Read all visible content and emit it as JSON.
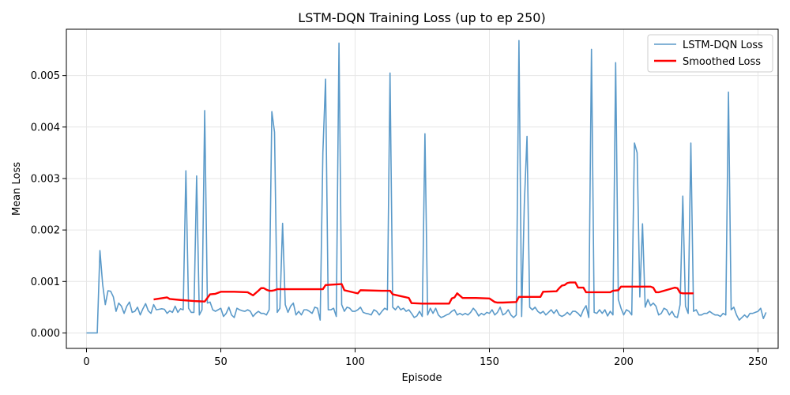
{
  "chart_data": {
    "type": "line",
    "title": "LSTM-DQN Training Loss (up to ep 250)",
    "xlabel": "Episode",
    "ylabel": "Mean Loss",
    "xlim": [
      -7.5,
      257.5
    ],
    "ylim": [
      -0.0003,
      0.0059
    ],
    "xticks": [
      0,
      50,
      100,
      150,
      200,
      250
    ],
    "yticks": [
      0.0,
      0.001,
      0.002,
      0.003,
      0.004,
      0.005
    ],
    "ytick_labels": [
      "0.000",
      "0.001",
      "0.002",
      "0.003",
      "0.004",
      "0.005"
    ],
    "grid": true,
    "legend_position": "top-right",
    "colors": {
      "raw": "#5b9ac9",
      "smoothed": "#ff0000",
      "grid": "#e6e6e6",
      "axes": "#000000"
    },
    "series": [
      {
        "name": "LSTM-DQN Loss",
        "x_start": 0,
        "values": [
          0,
          0,
          0,
          0,
          0,
          0.0016,
          0.00095,
          0.00055,
          0.00082,
          0.00081,
          0.0007,
          0.00042,
          0.00058,
          0.00052,
          0.00038,
          0.00052,
          0.0006,
          0.0004,
          0.00042,
          0.0005,
          0.00035,
          0.00047,
          0.00057,
          0.00043,
          0.00038,
          0.00055,
          0.00045,
          0.00046,
          0.00047,
          0.00046,
          0.00038,
          0.00043,
          0.0004,
          0.00052,
          0.0004,
          0.00047,
          0.00045,
          0.00315,
          0.00048,
          0.0004,
          0.0004,
          0.00305,
          0.00035,
          0.00045,
          0.00432,
          0.00058,
          0.0006,
          0.00045,
          0.00042,
          0.00045,
          0.00048,
          0.00032,
          0.00038,
          0.0005,
          0.00035,
          0.0003,
          0.00048,
          0.00045,
          0.00043,
          0.00042,
          0.00045,
          0.00042,
          0.00032,
          0.00038,
          0.00042,
          0.00038,
          0.00038,
          0.00035,
          0.00045,
          0.0043,
          0.0039,
          0.0004,
          0.00048,
          0.00213,
          0.00055,
          0.0004,
          0.00052,
          0.00058,
          0.00035,
          0.00042,
          0.00035,
          0.00045,
          0.00045,
          0.00042,
          0.00038,
          0.0005,
          0.00048,
          0.00025,
          0.0035,
          0.00493,
          0.00045,
          0.00045,
          0.00048,
          0.00032,
          0.00563,
          0.00055,
          0.00042,
          0.0005,
          0.00048,
          0.00042,
          0.00042,
          0.00045,
          0.0005,
          0.0004,
          0.00038,
          0.00037,
          0.00035,
          0.00045,
          0.00042,
          0.00035,
          0.00042,
          0.00048,
          0.00045,
          0.00505,
          0.0005,
          0.00045,
          0.00052,
          0.00045,
          0.00048,
          0.00042,
          0.00045,
          0.00038,
          0.0003,
          0.00033,
          0.00042,
          0.00032,
          0.00387,
          0.00035,
          0.00048,
          0.00038,
          0.00048,
          0.00035,
          0.0003,
          0.00032,
          0.00035,
          0.00037,
          0.00042,
          0.00045,
          0.00035,
          0.00038,
          0.00035,
          0.00038,
          0.00035,
          0.0004,
          0.00048,
          0.00042,
          0.00033,
          0.00038,
          0.00035,
          0.0004,
          0.00038,
          0.00045,
          0.00035,
          0.0004,
          0.0005,
          0.00035,
          0.00038,
          0.00045,
          0.00035,
          0.0003,
          0.00035,
          0.00568,
          0.00032,
          0.0025,
          0.00382,
          0.0005,
          0.00045,
          0.0005,
          0.00042,
          0.00038,
          0.00042,
          0.00035,
          0.0004,
          0.00045,
          0.00038,
          0.00045,
          0.00035,
          0.00032,
          0.00035,
          0.0004,
          0.00035,
          0.00042,
          0.00042,
          0.00038,
          0.00032,
          0.00045,
          0.00053,
          0.0003,
          0.00551,
          0.0004,
          0.00038,
          0.00045,
          0.00038,
          0.00045,
          0.00033,
          0.00042,
          0.00035,
          0.00525,
          0.00065,
          0.00048,
          0.00035,
          0.00045,
          0.00042,
          0.00035,
          0.00369,
          0.0035,
          0.0007,
          0.00212,
          0.0005,
          0.00065,
          0.00053,
          0.00058,
          0.00052,
          0.00035,
          0.00038,
          0.00048,
          0.00045,
          0.00035,
          0.00042,
          0.00032,
          0.0003,
          0.00055,
          0.00266,
          0.00052,
          0.00038,
          0.00369,
          0.00042,
          0.00045,
          0.00035,
          0.00035,
          0.00038,
          0.00038,
          0.00042,
          0.00038,
          0.00035,
          0.00035,
          0.00032,
          0.00038,
          0.00035,
          0.00468,
          0.00045,
          0.0005,
          0.00035,
          0.00025,
          0.0003,
          0.00035,
          0.0003,
          0.00038,
          0.00038,
          0.0004,
          0.00042,
          0.00048,
          0.00028,
          0.0004
        ]
      },
      {
        "name": "Smoothed Loss",
        "x": [
          25,
          30,
          31,
          35,
          40,
          44,
          46,
          48,
          50,
          55,
          60,
          62,
          64,
          65,
          66,
          67,
          68,
          69,
          70,
          71,
          75,
          80,
          85,
          88,
          89,
          95,
          96,
          100,
          101,
          102,
          110,
          113,
          114,
          120,
          121,
          125,
          130,
          135,
          136,
          137,
          138,
          140,
          145,
          150,
          152,
          153,
          155,
          160,
          161,
          165,
          169,
          170,
          175,
          176,
          177,
          178,
          179,
          180,
          182,
          183,
          185,
          186,
          190,
          195,
          196,
          198,
          199,
          200,
          210,
          211,
          212,
          213,
          219,
          220,
          221,
          222,
          226
        ],
        "values": [
          0.00065,
          0.00069,
          0.00066,
          0.00064,
          0.00062,
          0.00061,
          0.00075,
          0.00076,
          0.0008,
          0.0008,
          0.00079,
          0.00073,
          0.00082,
          0.00087,
          0.00087,
          0.00084,
          0.00082,
          0.00082,
          0.00083,
          0.00085,
          0.00085,
          0.00085,
          0.00085,
          0.00085,
          0.00093,
          0.00095,
          0.00083,
          0.00078,
          0.00077,
          0.00083,
          0.00082,
          0.00082,
          0.00075,
          0.00068,
          0.00058,
          0.00057,
          0.00057,
          0.00057,
          0.00067,
          0.00069,
          0.00077,
          0.00068,
          0.00068,
          0.00067,
          0.0006,
          0.00059,
          0.00059,
          0.0006,
          0.0007,
          0.0007,
          0.0007,
          0.0008,
          0.00081,
          0.00087,
          0.00092,
          0.00093,
          0.00097,
          0.00098,
          0.00098,
          0.00088,
          0.00088,
          0.00079,
          0.00079,
          0.00079,
          0.00082,
          0.00083,
          0.0009,
          0.0009,
          0.0009,
          0.00088,
          0.00079,
          0.00079,
          0.00088,
          0.00087,
          0.00078,
          0.00077,
          0.00077
        ]
      }
    ]
  }
}
